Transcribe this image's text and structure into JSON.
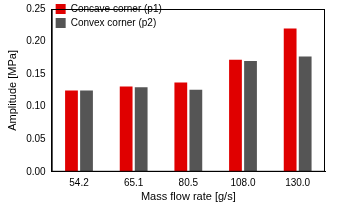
{
  "chart_data": {
    "type": "bar",
    "x_label": "Mass flow rate [g/s]",
    "y_label": "Amplitude [MPa]",
    "categories": [
      "54.2",
      "65.1",
      "80.5",
      "108.0",
      "130.0"
    ],
    "series": [
      {
        "name": "Concave corner (p1)",
        "color": "#e00000",
        "values": [
          0.125,
          0.131,
          0.137,
          0.172,
          0.22
        ]
      },
      {
        "name": "Convex corner (p2)",
        "color": "#555555",
        "values": [
          0.125,
          0.13,
          0.126,
          0.17,
          0.177
        ]
      }
    ],
    "ylim": [
      0,
      0.25
    ],
    "yticks": [
      {
        "value": 0,
        "label": "0.00"
      },
      {
        "value": 0.05,
        "label": "0.05"
      },
      {
        "value": 0.1,
        "label": "0.10"
      },
      {
        "value": 0.15,
        "label": "0.15"
      },
      {
        "value": 0.2,
        "label": "0.20"
      },
      {
        "value": 0.25,
        "label": "0.25"
      }
    ],
    "grid": false,
    "legend": "upper left"
  }
}
